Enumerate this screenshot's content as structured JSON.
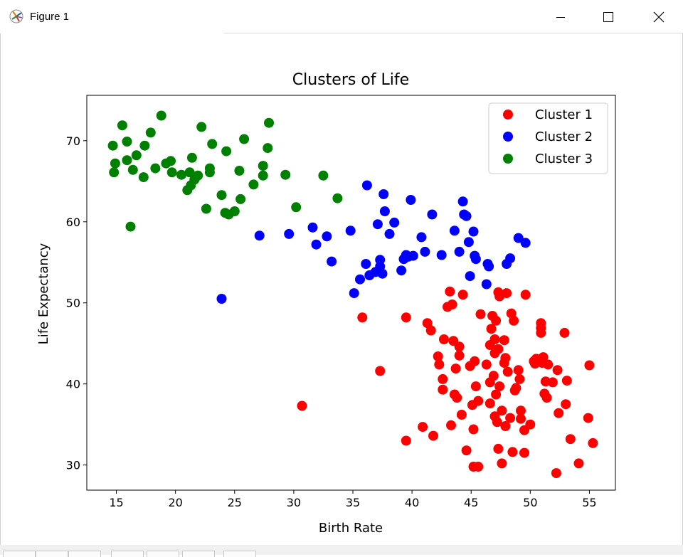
{
  "window": {
    "title": "Figure 1",
    "icon": "matplotlib-figure-icon",
    "controls": [
      "minimize-icon",
      "maximize-icon",
      "close-icon"
    ]
  },
  "colors": {
    "cluster1": "#ff0000",
    "cluster2": "#0000ff",
    "cluster3": "#008000"
  },
  "chart_data": {
    "type": "scatter",
    "title": "Clusters of Life",
    "xlabel": "Birth Rate",
    "ylabel": "Life Expectancy",
    "xlim": [
      12.5,
      57.2
    ],
    "ylim": [
      26.9,
      75.6
    ],
    "xticks": [
      15,
      20,
      25,
      30,
      35,
      40,
      45,
      50,
      55
    ],
    "yticks": [
      30,
      40,
      50,
      60,
      70
    ],
    "grid": false,
    "legend_position": "top-right",
    "series": [
      {
        "name": "Cluster 1",
        "color": "#ff0000",
        "points": [
          [
            30.7,
            37.3
          ],
          [
            35.8,
            48.2
          ],
          [
            37.3,
            41.6
          ],
          [
            39.5,
            48.2
          ],
          [
            39.5,
            33.0
          ],
          [
            40.9,
            34.7
          ],
          [
            41.3,
            47.5
          ],
          [
            41.6,
            46.6
          ],
          [
            41.8,
            33.6
          ],
          [
            42.2,
            43.4
          ],
          [
            42.3,
            42.4
          ],
          [
            42.6,
            40.6
          ],
          [
            42.6,
            39.3
          ],
          [
            42.7,
            45.5
          ],
          [
            43.0,
            49.5
          ],
          [
            43.2,
            51.4
          ],
          [
            43.3,
            34.9
          ],
          [
            43.4,
            49.8
          ],
          [
            43.5,
            45.3
          ],
          [
            43.6,
            38.7
          ],
          [
            43.7,
            41.9
          ],
          [
            43.8,
            38.3
          ],
          [
            44.0,
            43.5
          ],
          [
            44.0,
            44.6
          ],
          [
            44.2,
            36.2
          ],
          [
            44.3,
            51.0
          ],
          [
            44.6,
            31.8
          ],
          [
            44.9,
            42.2
          ],
          [
            45.1,
            37.4
          ],
          [
            45.2,
            34.4
          ],
          [
            45.2,
            29.8
          ],
          [
            45.3,
            42.8
          ],
          [
            45.4,
            39.7
          ],
          [
            45.6,
            29.8
          ],
          [
            45.6,
            37.9
          ],
          [
            45.8,
            48.6
          ],
          [
            46.3,
            42.4
          ],
          [
            46.6,
            37.6
          ],
          [
            46.6,
            44.8
          ],
          [
            46.6,
            40.2
          ],
          [
            46.7,
            46.8
          ],
          [
            46.8,
            48.4
          ],
          [
            46.9,
            41.0
          ],
          [
            47.0,
            36.0
          ],
          [
            47.0,
            45.5
          ],
          [
            47.0,
            43.8
          ],
          [
            47.1,
            38.7
          ],
          [
            47.1,
            47.8
          ],
          [
            47.2,
            35.3
          ],
          [
            47.3,
            51.3
          ],
          [
            47.3,
            44.3
          ],
          [
            47.3,
            32.0
          ],
          [
            47.4,
            39.7
          ],
          [
            47.4,
            50.8
          ],
          [
            47.6,
            30.2
          ],
          [
            47.6,
            36.7
          ],
          [
            47.8,
            45.4
          ],
          [
            47.8,
            42.6
          ],
          [
            47.9,
            43.2
          ],
          [
            47.9,
            34.8
          ],
          [
            48.0,
            51.2
          ],
          [
            48.1,
            41.5
          ],
          [
            48.3,
            35.8
          ],
          [
            48.4,
            48.7
          ],
          [
            48.5,
            31.6
          ],
          [
            48.6,
            47.8
          ],
          [
            48.7,
            39.2
          ],
          [
            48.8,
            39.5
          ],
          [
            49.0,
            41.7
          ],
          [
            49.1,
            40.6
          ],
          [
            49.2,
            36.7
          ],
          [
            49.2,
            35.7
          ],
          [
            49.5,
            34.3
          ],
          [
            49.5,
            31.5
          ],
          [
            49.6,
            51.0
          ],
          [
            50.0,
            35.0
          ],
          [
            50.3,
            42.8
          ],
          [
            50.4,
            42.5
          ],
          [
            50.5,
            43.1
          ],
          [
            50.9,
            47.5
          ],
          [
            50.9,
            46.3
          ],
          [
            50.9,
            46.9
          ],
          [
            51.0,
            42.6
          ],
          [
            51.1,
            43.3
          ],
          [
            51.2,
            38.8
          ],
          [
            51.3,
            40.3
          ],
          [
            51.4,
            38.3
          ],
          [
            51.5,
            42.4
          ],
          [
            51.9,
            40.2
          ],
          [
            52.2,
            29.0
          ],
          [
            52.3,
            41.7
          ],
          [
            52.4,
            36.4
          ],
          [
            52.9,
            46.3
          ],
          [
            53.0,
            37.5
          ],
          [
            53.1,
            40.4
          ],
          [
            53.4,
            33.2
          ],
          [
            54.1,
            30.2
          ],
          [
            54.9,
            35.8
          ],
          [
            55.0,
            42.3
          ],
          [
            55.3,
            32.7
          ]
        ]
      },
      {
        "name": "Cluster 2",
        "color": "#0000ff",
        "points": [
          [
            23.9,
            50.5
          ],
          [
            27.1,
            58.3
          ],
          [
            29.6,
            58.5
          ],
          [
            31.6,
            59.3
          ],
          [
            31.9,
            57.2
          ],
          [
            32.8,
            58.2
          ],
          [
            33.2,
            55.1
          ],
          [
            34.8,
            58.9
          ],
          [
            35.1,
            51.2
          ],
          [
            35.6,
            52.9
          ],
          [
            36.1,
            54.8
          ],
          [
            36.2,
            64.5
          ],
          [
            36.4,
            53.4
          ],
          [
            36.9,
            53.8
          ],
          [
            37.1,
            59.7
          ],
          [
            37.3,
            54.5
          ],
          [
            37.3,
            55.3
          ],
          [
            37.5,
            53.6
          ],
          [
            37.6,
            63.4
          ],
          [
            37.7,
            61.3
          ],
          [
            38.1,
            58.5
          ],
          [
            38.5,
            59.9
          ],
          [
            39.1,
            54.0
          ],
          [
            39.3,
            55.4
          ],
          [
            39.5,
            55.9
          ],
          [
            39.7,
            55.7
          ],
          [
            39.9,
            62.7
          ],
          [
            40.1,
            55.8
          ],
          [
            40.8,
            58.1
          ],
          [
            41.1,
            56.3
          ],
          [
            41.7,
            60.9
          ],
          [
            42.5,
            55.9
          ],
          [
            43.6,
            58.9
          ],
          [
            44.0,
            56.3
          ],
          [
            44.3,
            62.5
          ],
          [
            44.4,
            60.9
          ],
          [
            44.6,
            60.7
          ],
          [
            44.8,
            57.5
          ],
          [
            44.9,
            53.3
          ],
          [
            45.2,
            58.8
          ],
          [
            45.3,
            55.8
          ],
          [
            45.4,
            55.4
          ],
          [
            46.3,
            52.3
          ],
          [
            46.4,
            54.8
          ],
          [
            46.5,
            54.5
          ],
          [
            48.0,
            54.8
          ],
          [
            48.3,
            55.5
          ],
          [
            49.0,
            58.0
          ],
          [
            49.6,
            57.4
          ]
        ]
      },
      {
        "name": "Cluster 3",
        "color": "#008000",
        "points": [
          [
            14.7,
            69.4
          ],
          [
            14.8,
            66.1
          ],
          [
            14.9,
            67.2
          ],
          [
            15.5,
            71.9
          ],
          [
            15.9,
            67.6
          ],
          [
            15.9,
            69.9
          ],
          [
            16.2,
            59.4
          ],
          [
            16.4,
            66.4
          ],
          [
            16.7,
            68.2
          ],
          [
            17.3,
            65.5
          ],
          [
            17.4,
            69.4
          ],
          [
            17.9,
            71.0
          ],
          [
            18.3,
            66.6
          ],
          [
            18.8,
            73.1
          ],
          [
            19.2,
            67.2
          ],
          [
            19.6,
            67.5
          ],
          [
            19.7,
            66.1
          ],
          [
            20.5,
            65.8
          ],
          [
            21.0,
            63.9
          ],
          [
            21.2,
            66.1
          ],
          [
            21.3,
            64.5
          ],
          [
            21.4,
            67.9
          ],
          [
            21.6,
            65.2
          ],
          [
            21.9,
            65.7
          ],
          [
            22.2,
            71.7
          ],
          [
            22.6,
            61.6
          ],
          [
            22.9,
            66.6
          ],
          [
            22.9,
            66.1
          ],
          [
            23.1,
            69.6
          ],
          [
            23.9,
            63.3
          ],
          [
            24.2,
            61.1
          ],
          [
            24.3,
            68.7
          ],
          [
            24.5,
            60.9
          ],
          [
            25.0,
            61.3
          ],
          [
            25.4,
            66.3
          ],
          [
            25.5,
            62.8
          ],
          [
            25.8,
            70.2
          ],
          [
            26.6,
            64.6
          ],
          [
            27.4,
            66.9
          ],
          [
            27.4,
            65.7
          ],
          [
            27.8,
            69.1
          ],
          [
            27.9,
            72.2
          ],
          [
            29.3,
            65.8
          ],
          [
            30.2,
            61.8
          ],
          [
            32.5,
            65.7
          ],
          [
            33.7,
            62.9
          ]
        ]
      }
    ]
  }
}
